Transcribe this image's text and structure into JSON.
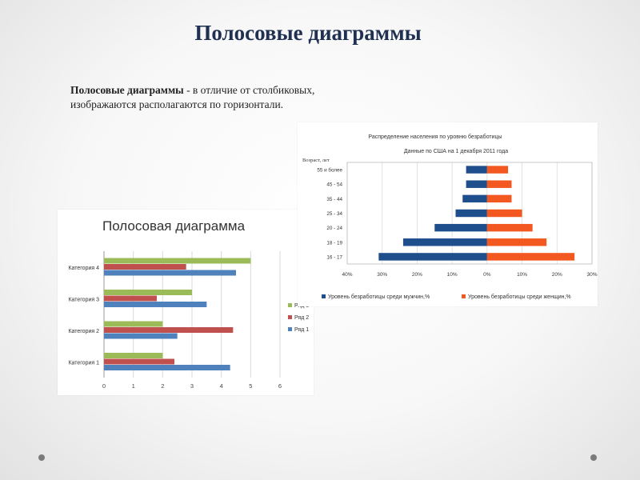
{
  "slide": {
    "title": "Полосовые диаграммы",
    "intro_bold": "Полосовые диаграммы",
    "intro_rest": " - в отличие от столбиковых, изображаются располагаются по горизонтали."
  },
  "chart_data": [
    {
      "type": "bar",
      "orientation": "horizontal",
      "title": "Полосовая диаграмма",
      "categories": [
        "Категория 1",
        "Категория 2",
        "Категория 3",
        "Категория 4"
      ],
      "series": [
        {
          "name": "Ряд 1",
          "color": "#4f81bd",
          "values": [
            4.3,
            2.5,
            3.5,
            4.5
          ]
        },
        {
          "name": "Ряд 2",
          "color": "#c0504d",
          "values": [
            2.4,
            4.4,
            1.8,
            2.8
          ]
        },
        {
          "name": "Ряд 3",
          "color": "#9bbb59",
          "values": [
            2.0,
            2.0,
            3.0,
            5.0
          ]
        }
      ],
      "xlim": [
        0,
        6
      ],
      "xticks": [
        "0",
        "1",
        "2",
        "3",
        "4",
        "5",
        "6"
      ],
      "legend": "right",
      "grid": true
    },
    {
      "type": "bar",
      "orientation": "horizontal",
      "subtype": "population-pyramid",
      "title": "Распределение населения по уровню безработицы",
      "subtitle": "Данные по США на 1 декабря 2011 года",
      "ylabel": "Возраст, лет",
      "categories": [
        "55 и более",
        "45 - 54",
        "35 - 44",
        "25 - 34",
        "20 - 24",
        "18 - 19",
        "16 - 17"
      ],
      "series": [
        {
          "name": "Уровень безработицы среди мужчин,%",
          "color": "#1f4e8c",
          "side": "left",
          "values": [
            6,
            6,
            7,
            9,
            15,
            24,
            31
          ]
        },
        {
          "name": "Уровень безработицы среди женщин,%",
          "color": "#f2581f",
          "side": "right",
          "values": [
            6,
            7,
            7,
            10,
            13,
            17,
            25
          ]
        }
      ],
      "xlim": [
        -40,
        30
      ],
      "xticks": [
        "40%",
        "30%",
        "20%",
        "10%",
        "0%",
        "10%",
        "20%",
        "30%"
      ],
      "legend": "bottom",
      "grid": true
    }
  ]
}
